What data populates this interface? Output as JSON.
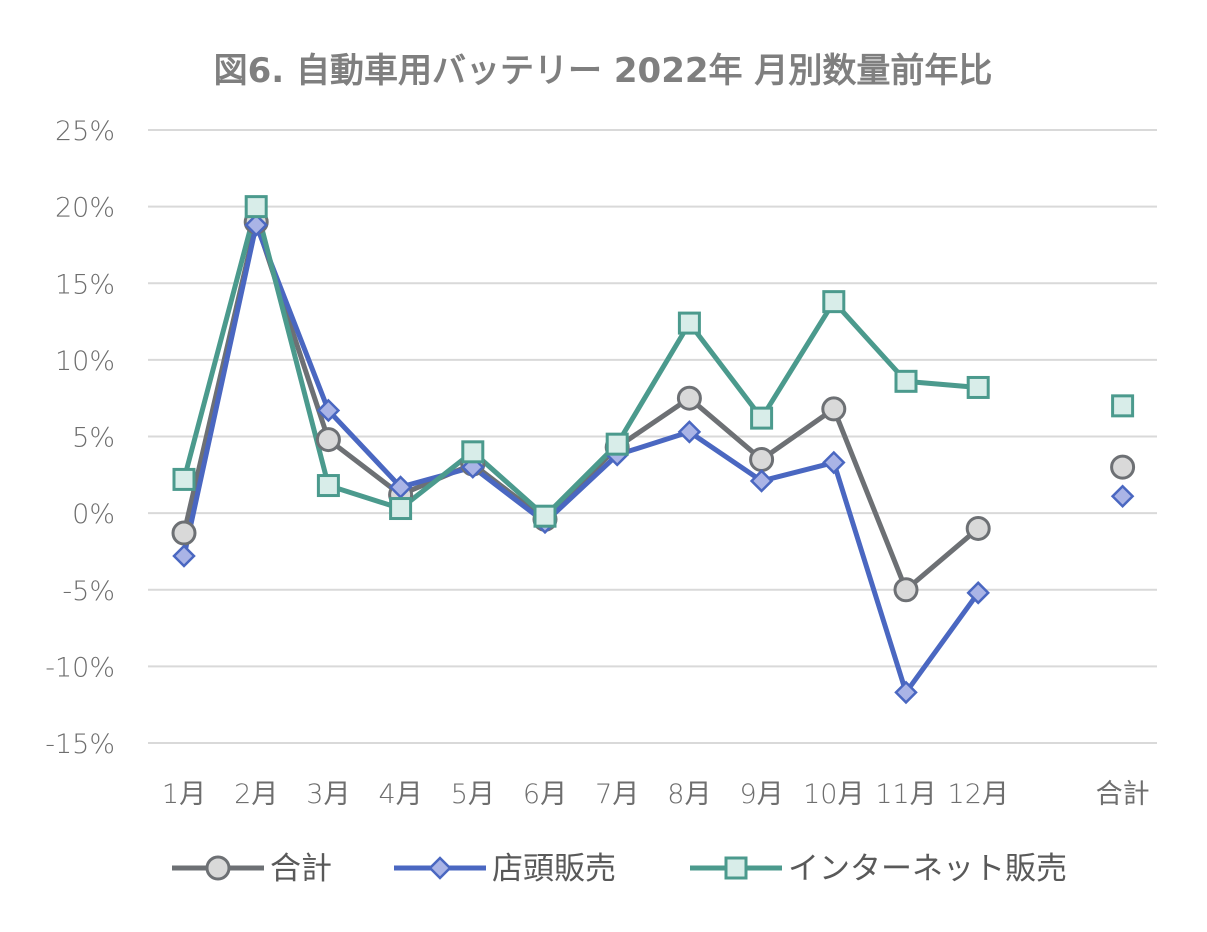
{
  "chart_data": {
    "type": "line",
    "title": "図6. 自動車用バッテリー 2022年 月別数量前年比",
    "xlabel": "",
    "ylabel": "",
    "ylim": [
      -15,
      25
    ],
    "ytick_step": 5,
    "ytick_labels": [
      "25%",
      "20%",
      "15%",
      "10%",
      "5%",
      "0%",
      "-5%",
      "-10%",
      "-15%"
    ],
    "grid": true,
    "legend_position": "bottom",
    "categories": [
      "1月",
      "2月",
      "3月",
      "4月",
      "5月",
      "6月",
      "7月",
      "8月",
      "9月",
      "10月",
      "11月",
      "12月",
      "",
      "合計"
    ],
    "series": [
      {
        "name": "合計",
        "color": "#6d7074",
        "marker": "circle",
        "marker_fill": "#d9d9d9",
        "values": [
          -1.3,
          19.0,
          4.8,
          1.2,
          3.2,
          -0.4,
          4.3,
          7.5,
          3.5,
          6.8,
          -5.0,
          -1.0,
          null,
          3.0
        ]
      },
      {
        "name": "店頭販売",
        "color": "#4a67c1",
        "marker": "diamond",
        "marker_fill": "#aab4e6",
        "values": [
          -2.8,
          18.8,
          6.7,
          1.7,
          3.0,
          -0.6,
          3.8,
          5.3,
          2.1,
          3.3,
          -11.7,
          -5.2,
          null,
          1.1
        ]
      },
      {
        "name": "インターネット販売",
        "color": "#4b9a8d",
        "marker": "square",
        "marker_fill": "#d8ede9",
        "values": [
          2.2,
          20.0,
          1.8,
          0.3,
          4.0,
          -0.2,
          4.5,
          12.4,
          6.2,
          13.8,
          8.6,
          8.2,
          null,
          7.0
        ]
      }
    ]
  }
}
